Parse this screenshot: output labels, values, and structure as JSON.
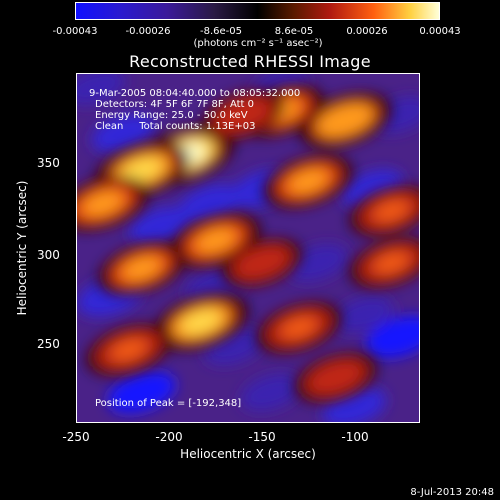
{
  "chart_data": {
    "type": "heatmap",
    "title": "Reconstructed RHESSI Image",
    "xlabel": "Heliocentric X (arcsec)",
    "ylabel": "Heliocentric Y (arcsec)",
    "xlim": [
      -250,
      -65
    ],
    "ylim": [
      204,
      392
    ],
    "xticks": [
      "-250",
      "-200",
      "-150",
      "-100"
    ],
    "yticks": [
      "250",
      "300",
      "350"
    ],
    "colorbar": {
      "range": [
        -0.00043,
        0.00043
      ],
      "tick_labels": [
        "-0.00043",
        "-0.00026",
        "-8.6e-05",
        "8.6e-05",
        "0.00026",
        "0.00043"
      ],
      "label": "(photons cm⁻² s⁻¹ asec⁻²)"
    },
    "annotations": {
      "time": "9-Mar-2005 08:04:40.000 to 08:05:32.000",
      "detectors": "Detectors: 4F 5F 6F 7F 8F, Att 0",
      "energy": "Energy Range: 25.0 - 50.0 keV",
      "clean": "Clean     Total counts: 1.13E+03",
      "peak": "Position of Peak = [-192,348]"
    },
    "peak": {
      "x": -192,
      "y": 348
    },
    "bright_blobs": [
      {
        "x": -192,
        "y": 348,
        "value": 0.00043
      },
      {
        "x": -215,
        "y": 340,
        "value": 0.00035
      },
      {
        "x": -183,
        "y": 258,
        "value": 0.00034
      },
      {
        "x": -105,
        "y": 367,
        "value": 0.0003
      },
      {
        "x": -236,
        "y": 322,
        "value": 0.00028
      },
      {
        "x": -175,
        "y": 302,
        "value": 0.00027
      },
      {
        "x": -125,
        "y": 334,
        "value": 0.00024
      },
      {
        "x": -140,
        "y": 372,
        "value": 0.00022
      },
      {
        "x": -215,
        "y": 287,
        "value": 0.00022
      },
      {
        "x": -222,
        "y": 243,
        "value": 0.0002
      },
      {
        "x": -130,
        "y": 255,
        "value": 0.00018
      },
      {
        "x": -80,
        "y": 318,
        "value": 0.00016
      },
      {
        "x": -110,
        "y": 228,
        "value": 0.00014
      },
      {
        "x": -80,
        "y": 290,
        "value": 0.00016
      },
      {
        "x": -150,
        "y": 290,
        "value": 0.0001
      },
      {
        "x": -160,
        "y": 370,
        "value": 0.00014
      }
    ],
    "dark_blobs": [
      {
        "x": -75,
        "y": 250,
        "value": -0.00043
      },
      {
        "x": -215,
        "y": 220,
        "value": -0.0004
      },
      {
        "x": -232,
        "y": 272,
        "value": -0.00035
      },
      {
        "x": -178,
        "y": 322,
        "value": -0.0003
      },
      {
        "x": -100,
        "y": 212,
        "value": -0.0003
      },
      {
        "x": -225,
        "y": 360,
        "value": -0.00028
      },
      {
        "x": -150,
        "y": 330,
        "value": -0.00026
      },
      {
        "x": -205,
        "y": 310,
        "value": -0.00026
      },
      {
        "x": -90,
        "y": 330,
        "value": -0.00026
      },
      {
        "x": -175,
        "y": 277,
        "value": -0.00025
      },
      {
        "x": -120,
        "y": 290,
        "value": -0.00024
      },
      {
        "x": -165,
        "y": 245,
        "value": -0.00023
      },
      {
        "x": -145,
        "y": 220,
        "value": -0.00022
      },
      {
        "x": -240,
        "y": 385,
        "value": -0.0002
      },
      {
        "x": -75,
        "y": 370,
        "value": -0.0002
      },
      {
        "x": -95,
        "y": 262,
        "value": -0.0002
      },
      {
        "x": -140,
        "y": 385,
        "value": -0.00015
      }
    ]
  },
  "footer": {
    "date": "8-Jul-2013 20:48"
  }
}
